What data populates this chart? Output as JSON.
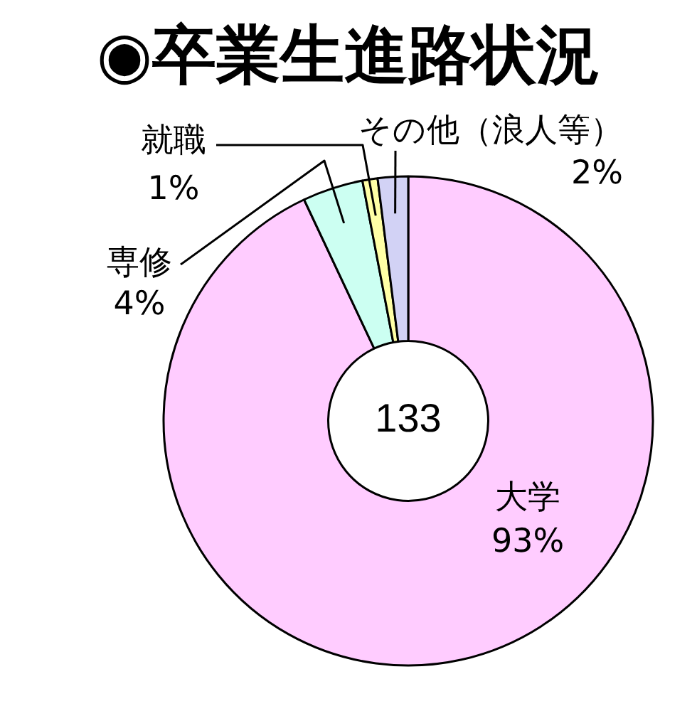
{
  "chart_data": {
    "type": "donut",
    "title": "◉卒業生進路状況",
    "categories": [
      "大学",
      "専修",
      "就職",
      "その他（浪人等）"
    ],
    "values": [
      93,
      4,
      1,
      2
    ],
    "colors": [
      "#ffccff",
      "#ccfff2",
      "#ffffa6",
      "#d2d2f5"
    ],
    "value_labels": [
      "93%",
      "4%",
      "1%",
      "2%"
    ],
    "annotations": [
      "133"
    ]
  }
}
